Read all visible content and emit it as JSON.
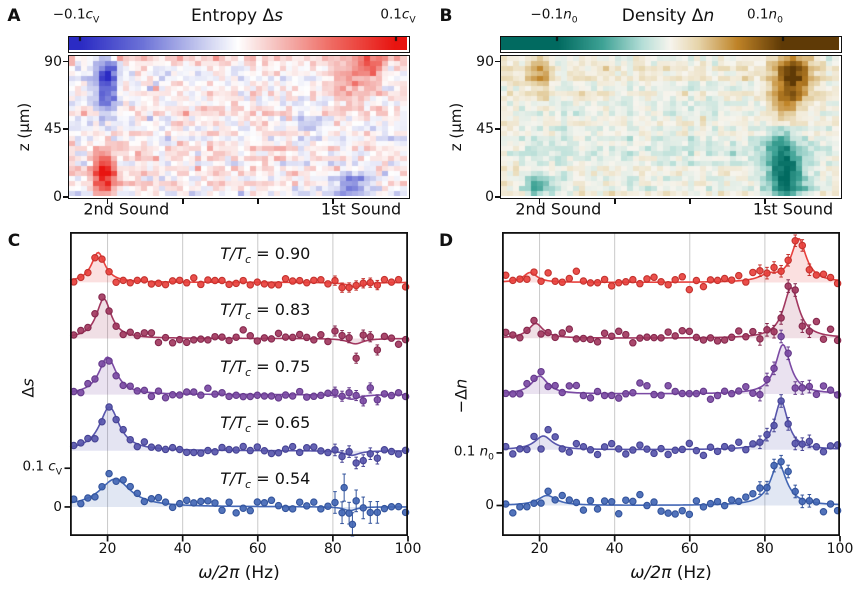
{
  "ui": {
    "panel_letters": {
      "a": "A",
      "b": "B",
      "c": "C",
      "d": "D"
    }
  },
  "colors": {
    "axis": "#111111",
    "grid": "#c9c9c9",
    "series": [
      "#e8413d",
      "#a23860",
      "#7b4aa4",
      "#5856ac",
      "#4367b5"
    ],
    "series_edges": [
      "#c4322e",
      "#86294e",
      "#653a8b",
      "#464394",
      "#33549c"
    ]
  },
  "chart_data": [
    {
      "id": "entropy_heatmap",
      "panel": "A",
      "type": "heatmap",
      "title": {
        "pre": "Entropy Δ",
        "it": "s"
      },
      "colorbar": {
        "left": {
          "val": "−0.1",
          "sym": "c",
          "sub": "V"
        },
        "right": {
          "val": "0.1",
          "sym": "c",
          "sub": "V"
        },
        "domain": [
          -1.07,
          1.07
        ],
        "tick_values": [
          -1,
          1
        ]
      },
      "xlim_hz": [
        10,
        100
      ],
      "zlim_um": [
        0,
        93
      ],
      "ylabel": "z (μm)",
      "yticks": [
        {
          "z": 90,
          "label": "90"
        },
        {
          "z": 45,
          "label": "45"
        },
        {
          "z": 0,
          "label": "0"
        }
      ],
      "xtick_hz": [
        20,
        40,
        60,
        80
      ],
      "mode_labels": [
        {
          "text": "2nd Sound",
          "hz": 25
        },
        {
          "text": "1st Sound",
          "hz": 87.5
        }
      ],
      "grid": {
        "cols": 56,
        "rows": 28
      },
      "seed": 7,
      "noise_sd": 0.1,
      "row_noise_sd": 0.06,
      "col_noise_sd": 0.04,
      "features": [
        {
          "hz": 20,
          "z": 76,
          "sx": 2.2,
          "sz": 14,
          "a": -0.9
        },
        {
          "hz": 19.5,
          "z": 15,
          "sx": 2.2,
          "sz": 10,
          "a": 1.0
        },
        {
          "hz": 86,
          "z": 80,
          "sx": 5.0,
          "sz": 12,
          "a": 0.35
        },
        {
          "hz": 91,
          "z": 87,
          "sx": 2.0,
          "sz": 5,
          "a": 0.45
        },
        {
          "hz": 86,
          "z": 7,
          "sx": 3.5,
          "sz": 7,
          "a": -0.55
        },
        {
          "hz": 74,
          "z": 52,
          "sx": 3.0,
          "sz": 8,
          "a": -0.22
        },
        {
          "hz": 55,
          "z": 50,
          "sx": 25,
          "sz": 30,
          "a": 0.06
        }
      ],
      "colormap": [
        [
          -1,
          "#2b2bc4"
        ],
        [
          -0.6,
          "#6e74d8"
        ],
        [
          -0.25,
          "#c3c7ee"
        ],
        [
          0,
          "#ffffff"
        ],
        [
          0.25,
          "#f6c0bd"
        ],
        [
          0.6,
          "#ef6a62"
        ],
        [
          1,
          "#e81410"
        ]
      ]
    },
    {
      "id": "density_heatmap",
      "panel": "B",
      "type": "heatmap",
      "title": {
        "pre": "Density Δ",
        "it": "n"
      },
      "colorbar": {
        "left": {
          "val": "−0.1",
          "sym": "n",
          "sub": "0"
        },
        "right": {
          "val": "0.1",
          "sym": "n",
          "sub": "0"
        },
        "domain": [
          -1.5,
          1.5
        ],
        "tick_values": [
          -1,
          1
        ]
      },
      "xlim_hz": [
        10,
        100
      ],
      "zlim_um": [
        0,
        93
      ],
      "ylabel": "z (μm)",
      "yticks": [
        {
          "z": 90,
          "label": "90"
        },
        {
          "z": 45,
          "label": "45"
        },
        {
          "z": 0,
          "label": "0"
        }
      ],
      "xtick_hz": [
        20,
        40,
        60,
        80
      ],
      "mode_labels": [
        {
          "text": "2nd Sound",
          "hz": 25
        },
        {
          "text": "1st Sound",
          "hz": 87.5
        }
      ],
      "grid": {
        "cols": 56,
        "rows": 28
      },
      "seed": 13,
      "noise_sd": 0.07,
      "row_noise_sd": 0.05,
      "col_noise_sd": 0.03,
      "features": [
        {
          "hz": 20,
          "z": 80,
          "sx": 2.2,
          "sz": 11,
          "a": 0.5
        },
        {
          "hz": 20,
          "z": 6,
          "sx": 2.5,
          "sz": 6,
          "a": -0.55
        },
        {
          "hz": 88,
          "z": 80,
          "sx": 3.5,
          "sz": 11,
          "a": 1.0
        },
        {
          "hz": 85.5,
          "z": 60,
          "sx": 3.0,
          "sz": 8,
          "a": 0.5
        },
        {
          "hz": 86,
          "z": 12,
          "sx": 3.5,
          "sz": 12,
          "a": -1.0
        },
        {
          "hz": 84.5,
          "z": 35,
          "sx": 3.0,
          "sz": 10,
          "a": -0.45
        },
        {
          "hz": 50,
          "z": 40,
          "sx": 30,
          "sz": 30,
          "a": -0.05
        }
      ],
      "colormap": [
        [
          -1,
          "#016a60"
        ],
        [
          -0.6,
          "#3fa396"
        ],
        [
          -0.25,
          "#b4ded7"
        ],
        [
          0,
          "#f7f5ee"
        ],
        [
          0.25,
          "#e7d5ab"
        ],
        [
          0.6,
          "#c08428"
        ],
        [
          1,
          "#5f3a06"
        ]
      ]
    },
    {
      "id": "entropy_spectra",
      "panel": "C",
      "type": "scatter",
      "xlabel": {
        "math": "ω/2π",
        "unit": " (Hz)"
      },
      "ylabel": {
        "pre": "Δ",
        "it": "s"
      },
      "unit": "c_V",
      "xlim": [
        10,
        100
      ],
      "ylim": [
        -0.075,
        0.71
      ],
      "xticks": [
        20,
        40,
        60,
        80,
        100
      ],
      "grid_hz": [
        20,
        40,
        60,
        80
      ],
      "yticks": [
        {
          "v": 0,
          "label": {
            "val": "0"
          }
        },
        {
          "v": 0.1,
          "label": {
            "val": "0.1 ",
            "sym": "c",
            "sub": "V"
          }
        }
      ],
      "label_template": {
        "it": "T/T",
        "sub": "c",
        "eq": " = "
      },
      "label_center_hz": 62,
      "points_x": {
        "start": 11,
        "step": 1.88,
        "count": 48
      },
      "series": [
        {
          "t_over_tc": "0.90",
          "color_i": 0,
          "offset": 0.58,
          "peaks": [
            {
              "hz": 17.5,
              "amp": 0.077,
              "hwhm": 2.2
            },
            {
              "hz": 86,
              "amp": -0.012,
              "hwhm": 2.5
            }
          ],
          "noise_sd": 0.006,
          "seed": 11,
          "err": {
            "range": [
              80,
              92
            ],
            "size": 0.012
          }
        },
        {
          "t_over_tc": "0.83",
          "color_i": 1,
          "offset": 0.435,
          "peaks": [
            {
              "hz": 19,
              "amp": 0.103,
              "hwhm": 2.4
            },
            {
              "hz": 86,
              "amp": -0.014,
              "hwhm": 2.5
            }
          ],
          "noise_sd": 0.007,
          "seed": 22,
          "err": {
            "range": [
              80,
              92
            ],
            "size": 0.013
          }
        },
        {
          "t_over_tc": "0.75",
          "color_i": 2,
          "offset": 0.29,
          "peaks": [
            {
              "hz": 20,
              "amp": 0.097,
              "hwhm": 2.8
            },
            {
              "hz": 85,
              "amp": -0.012,
              "hwhm": 2.5
            }
          ],
          "noise_sd": 0.007,
          "seed": 33,
          "err": {
            "range": [
              80,
              92
            ],
            "size": 0.013
          }
        },
        {
          "t_over_tc": "0.65",
          "color_i": 3,
          "offset": 0.145,
          "peaks": [
            {
              "hz": 20.5,
              "amp": 0.113,
              "hwhm": 3.2
            },
            {
              "hz": 85,
              "amp": -0.012,
              "hwhm": 2.5
            }
          ],
          "noise_sd": 0.007,
          "seed": 44,
          "err": {
            "range": [
              80,
              92
            ],
            "size": 0.015
          }
        },
        {
          "t_over_tc": "0.54",
          "color_i": 4,
          "offset": 0,
          "peaks": [
            {
              "hz": 22,
              "amp": 0.072,
              "hwhm": 5.0
            },
            {
              "hz": 84.5,
              "amp": -0.01,
              "hwhm": 2.0
            }
          ],
          "noise_sd": 0.009,
          "seed": 55,
          "err": {
            "range": [
              80,
              92
            ],
            "size": 0.028
          },
          "outliers": [
            {
              "hz": 83,
              "dy": 0.05,
              "e": 0.035
            },
            {
              "hz": 85.2,
              "dy": -0.045,
              "e": 0.03
            }
          ]
        }
      ]
    },
    {
      "id": "density_spectra",
      "panel": "D",
      "type": "scatter",
      "xlabel": {
        "math": "ω/2π",
        "unit": " (Hz)"
      },
      "ylabel": {
        "pre": "−Δ",
        "it": "n"
      },
      "unit": "n_0",
      "xlim": [
        10,
        100
      ],
      "ylim": [
        -0.058,
        0.52
      ],
      "xticks": [
        20,
        40,
        60,
        80,
        100
      ],
      "grid_hz": [
        20,
        40,
        60,
        80
      ],
      "yticks": [
        {
          "v": 0,
          "label": {
            "val": "0"
          }
        },
        {
          "v": 0.1,
          "label": {
            "val": "0.1 ",
            "sym": "n",
            "sub": "0"
          }
        }
      ],
      "points_x": {
        "start": 11,
        "step": 1.88,
        "count": 48
      },
      "series": [
        {
          "t_over_tc": "0.90",
          "color_i": 0,
          "offset": 0.424,
          "peaks": [
            {
              "hz": 17.5,
              "amp": 0.019,
              "hwhm": 2.2
            },
            {
              "hz": 81,
              "amp": 0.012,
              "hwhm": 3.0
            },
            {
              "hz": 89,
              "amp": 0.082,
              "hwhm": 2.4
            }
          ],
          "noise_sd": 0.006,
          "seed": 66,
          "err": {
            "range": [
              78,
              92
            ],
            "size": 0.011
          }
        },
        {
          "t_over_tc": "0.83",
          "color_i": 1,
          "offset": 0.318,
          "peaks": [
            {
              "hz": 19,
              "amp": 0.028,
              "hwhm": 2.4
            },
            {
              "hz": 87,
              "amp": 0.096,
              "hwhm": 2.5
            }
          ],
          "noise_sd": 0.007,
          "seed": 77,
          "err": {
            "range": [
              78,
              92
            ],
            "size": 0.012
          }
        },
        {
          "t_over_tc": "0.75",
          "color_i": 2,
          "offset": 0.212,
          "peaks": [
            {
              "hz": 20,
              "amp": 0.034,
              "hwhm": 2.6
            },
            {
              "hz": 84.8,
              "amp": 0.094,
              "hwhm": 2.4
            }
          ],
          "noise_sd": 0.007,
          "seed": 88,
          "err": {
            "range": [
              78,
              92
            ],
            "size": 0.012
          }
        },
        {
          "t_over_tc": "0.65",
          "color_i": 3,
          "offset": 0.106,
          "peaks": [
            {
              "hz": 21,
              "amp": 0.026,
              "hwhm": 2.8
            },
            {
              "hz": 84.3,
              "amp": 0.092,
              "hwhm": 2.2
            }
          ],
          "noise_sd": 0.007,
          "seed": 99,
          "err": {
            "range": [
              78,
              92
            ],
            "size": 0.012
          }
        },
        {
          "t_over_tc": "0.54",
          "color_i": 4,
          "offset": 0,
          "peaks": [
            {
              "hz": 22,
              "amp": 0.019,
              "hwhm": 3.0
            },
            {
              "hz": 83.6,
              "amp": 0.08,
              "hwhm": 2.6
            }
          ],
          "noise_sd": 0.008,
          "seed": 101,
          "err": {
            "range": [
              78,
              92
            ],
            "size": 0.012
          }
        }
      ]
    }
  ]
}
